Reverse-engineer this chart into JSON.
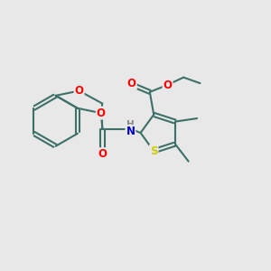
{
  "background_color": "#e8e8e8",
  "bond_color": "#3d7068",
  "bond_width": 1.5,
  "atom_colors": {
    "O": "#ff0000",
    "N": "#0000cc",
    "S": "#cccc00",
    "H": "#888888"
  },
  "font_size_atom": 8.5,
  "fig_size": [
    3.0,
    3.0
  ],
  "dpi": 100,
  "xlim": [
    0,
    10
  ],
  "ylim": [
    0,
    10
  ]
}
